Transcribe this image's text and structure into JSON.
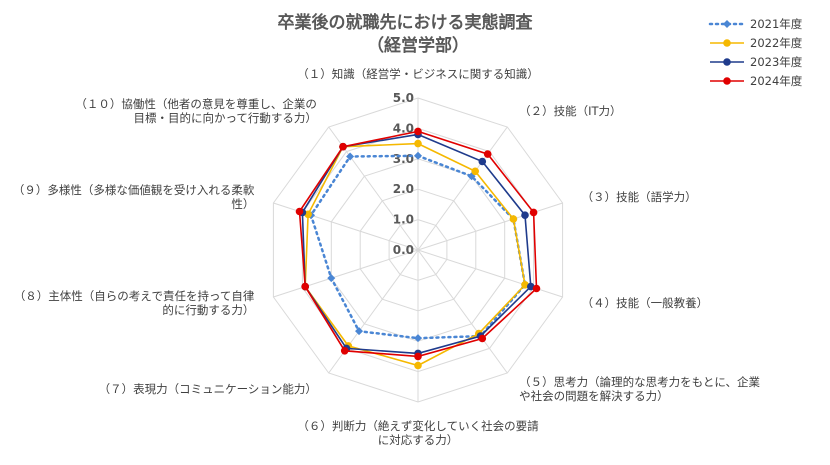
{
  "chart_data": {
    "type": "radar",
    "title": "卒業後の就職先における実態調査",
    "subtitle": "（経営学部）",
    "rlim": [
      0,
      5
    ],
    "ticks": [
      "0.0",
      "1.0",
      "2.0",
      "3.0",
      "4.0",
      "5.0"
    ],
    "axes": [
      [
        "（１）知識（経営学・ビジネスに関する知識）"
      ],
      [
        "（２）技能（IT力）"
      ],
      [
        "（３）技能（語学力）"
      ],
      [
        "（４）技能（一般教養）"
      ],
      [
        "（５）思考力（論理的な思考力をもとに、企業",
        "や社会の問題を解決する力）"
      ],
      [
        "（６）判断力（絶えず変化していく社会の要請",
        "に対応する力）"
      ],
      [
        "（７）表現力（コミュニケーション能力）"
      ],
      [
        "（８）主体性（自らの考えで責任を持って自律",
        "的に行動する力）"
      ],
      [
        "（９）多様性（多様な価値観を受け入れる柔軟",
        "性）"
      ],
      [
        "（１０）協働性（他者の意見を尊重し、企業の",
        "目標・目的に向かって行動する力）"
      ]
    ],
    "legend_position": "top-right",
    "grid": true,
    "series": [
      {
        "name": "2021年度",
        "color": "#4a86d4",
        "style": "dotted",
        "marker": "diamond",
        "values": [
          3.1,
          3.0,
          3.3,
          3.7,
          3.5,
          2.9,
          3.3,
          3.0,
          3.7,
          3.8
        ]
      },
      {
        "name": "2022年度",
        "color": "#f5b800",
        "style": "solid",
        "marker": "circle",
        "values": [
          3.5,
          3.2,
          3.3,
          3.7,
          3.4,
          3.8,
          3.9,
          3.9,
          3.8,
          4.2
        ]
      },
      {
        "name": "2023年度",
        "color": "#1f3b8c",
        "style": "solid",
        "marker": "circle",
        "values": [
          3.8,
          3.6,
          3.7,
          3.9,
          3.5,
          3.4,
          4.0,
          3.9,
          4.0,
          4.2
        ]
      },
      {
        "name": "2024年度",
        "color": "#e00000",
        "style": "solid",
        "marker": "circle",
        "values": [
          3.9,
          3.9,
          4.0,
          4.1,
          3.6,
          3.5,
          4.1,
          3.9,
          4.1,
          4.2
        ]
      }
    ]
  }
}
